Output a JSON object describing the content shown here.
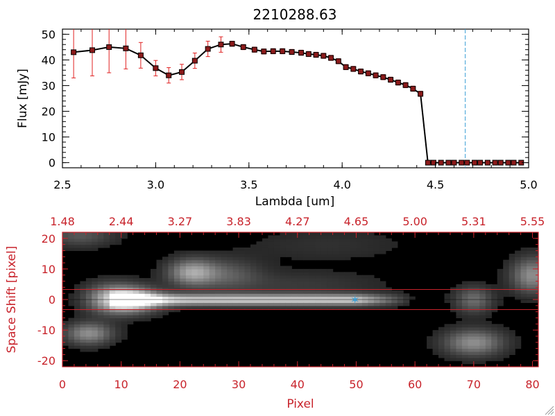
{
  "title": "2210288.63",
  "colors": {
    "axis_top": "#000000",
    "axis_bottom": "#c8232b",
    "marker": "#8b1a1a",
    "errorbar": "#e02020",
    "cutoff_line": "#3a9fd6",
    "star": "#3a9fd6"
  },
  "chart_data": [
    {
      "type": "line",
      "title": "2210288.63",
      "xlabel": "Lambda [um]",
      "ylabel": "Flux [mJy]",
      "xlim": [
        2.5,
        5.0
      ],
      "ylim": [
        -2,
        52
      ],
      "xticks": [
        2.5,
        3.0,
        3.5,
        4.0,
        4.5,
        5.0
      ],
      "xtick_labels": [
        "2.5",
        "3.0",
        "3.5",
        "4.0",
        "4.5",
        "5.0"
      ],
      "yticks": [
        0,
        10,
        20,
        30,
        40,
        50
      ],
      "ytick_labels": [
        "0",
        "10",
        "20",
        "30",
        "40",
        "50"
      ],
      "vline_x": 4.66,
      "series": [
        {
          "name": "flux",
          "x": [
            2.56,
            2.66,
            2.75,
            2.84,
            2.92,
            3.0,
            3.07,
            3.14,
            3.21,
            3.28,
            3.35,
            3.41,
            3.47,
            3.53,
            3.58,
            3.63,
            3.68,
            3.73,
            3.78,
            3.82,
            3.86,
            3.9,
            3.94,
            3.98,
            4.02,
            4.06,
            4.1,
            4.14,
            4.18,
            4.22,
            4.26,
            4.3,
            4.34,
            4.38,
            4.42,
            4.46,
            4.49,
            4.53,
            4.57,
            4.6,
            4.64,
            4.67,
            4.71,
            4.74,
            4.78,
            4.82,
            4.85,
            4.89,
            4.92,
            4.96
          ],
          "y": [
            43,
            43.8,
            45,
            44.5,
            41.8,
            36.8,
            34,
            35.3,
            39.7,
            44.3,
            46,
            46.3,
            45,
            44,
            43.3,
            43.4,
            43.4,
            43.1,
            42.8,
            42.3,
            42,
            41.6,
            40.8,
            39.5,
            37.2,
            36.5,
            35.5,
            34.8,
            34,
            33.3,
            32.3,
            31.2,
            30.2,
            28.8,
            26.8,
            0,
            0,
            0,
            0,
            0,
            0,
            0,
            0,
            0,
            0,
            0,
            0,
            0,
            0,
            0
          ],
          "yerr": [
            10,
            10,
            10,
            8,
            5,
            3,
            3,
            3,
            3,
            3,
            3,
            1,
            1,
            1,
            1,
            1,
            1,
            1,
            1,
            1,
            1,
            1,
            1,
            1,
            1,
            1,
            1,
            1,
            1,
            1,
            1,
            1,
            1,
            1,
            1,
            0,
            0,
            0,
            0,
            0,
            0,
            0,
            0,
            0,
            0,
            0,
            0,
            0,
            0,
            0
          ]
        }
      ]
    },
    {
      "type": "heatmap",
      "xlabel": "Pixel",
      "ylabel": "Space Shift [pixel]",
      "xlim": [
        0,
        81
      ],
      "ylim": [
        -22,
        22
      ],
      "xticks": [
        0,
        10,
        20,
        30,
        40,
        50,
        60,
        70,
        80
      ],
      "xtick_labels": [
        "0",
        "10",
        "20",
        "30",
        "40",
        "50",
        "60",
        "70",
        "80"
      ],
      "yticks": [
        -20,
        -10,
        0,
        10,
        20
      ],
      "ytick_labels": [
        "-20",
        "-10",
        "0",
        "10",
        "20"
      ],
      "top_axis_ticks": [
        0,
        10,
        20,
        30,
        40,
        50,
        60,
        70,
        80
      ],
      "top_axis_labels": [
        "1.48",
        "2.44",
        "3.27",
        "3.83",
        "4.27",
        "4.65",
        "5.00",
        "5.31",
        "5.55"
      ],
      "extraction_band": [
        -3.3,
        3.3
      ],
      "trace": {
        "x_start": 8,
        "x_end": 60,
        "intensity": 0.75
      },
      "blobs": [
        {
          "x": 11.5,
          "y": 0,
          "sx": 3.5,
          "sy": 2.8,
          "a": 0.85
        },
        {
          "x": 8,
          "y": 0.5,
          "sx": 3,
          "sy": 3.5,
          "a": 0.35
        },
        {
          "x": 22,
          "y": 9,
          "sx": 2.8,
          "sy": 3,
          "a": 0.55
        },
        {
          "x": 28,
          "y": 8.5,
          "sx": 4,
          "sy": 3.5,
          "a": 0.25
        },
        {
          "x": 4.5,
          "y": -11,
          "sx": 2.8,
          "sy": 2.5,
          "a": 0.5
        },
        {
          "x": 70,
          "y": -14,
          "sx": 3.5,
          "sy": 3,
          "a": 0.5
        },
        {
          "x": 70,
          "y": 0,
          "sx": 2.2,
          "sy": 3,
          "a": 0.35
        },
        {
          "x": 80,
          "y": 8,
          "sx": 2.5,
          "sy": 4,
          "a": 0.5
        },
        {
          "x": 3,
          "y": 21,
          "sx": 4,
          "sy": 2.5,
          "a": 0.25
        },
        {
          "x": 40,
          "y": 5,
          "sx": 10,
          "sy": 3,
          "a": 0.12
        },
        {
          "x": 45,
          "y": 18,
          "sx": 10,
          "sy": 4,
          "a": 0.08
        }
      ],
      "marker": {
        "x": 49.8,
        "y": 0
      }
    }
  ]
}
